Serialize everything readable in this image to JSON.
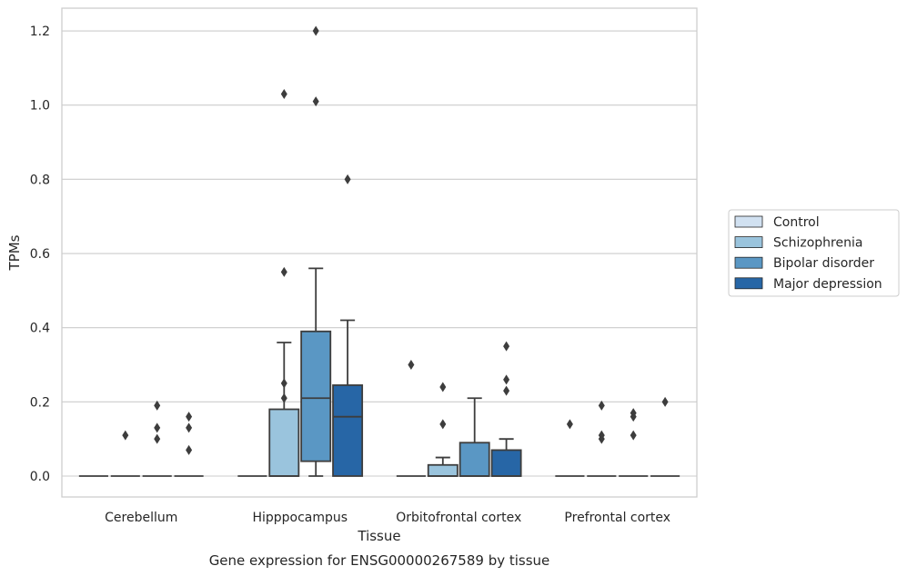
{
  "chart_data": {
    "type": "box",
    "title": "",
    "caption": "Gene expression for ENSG00000267589 by tissue",
    "xlabel": "Tissue",
    "ylabel": "TPMs",
    "ylim": [
      -0.06,
      1.26
    ],
    "yticks": [
      "0.0",
      "0.2",
      "0.4",
      "0.6",
      "0.8",
      "1.0",
      "1.2"
    ],
    "grid": "horizontal",
    "legend_position": "right",
    "categories": [
      "Cerebellum",
      "Hipppocampus",
      "Orbitofrontal cortex",
      "Prefrontal cortex"
    ],
    "series": [
      {
        "name": "Control",
        "color": "#d1e1f1",
        "boxes": [
          {
            "min": 0,
            "q1": 0,
            "median": 0,
            "q3": 0,
            "max": 0,
            "outliers": []
          },
          {
            "min": 0,
            "q1": 0,
            "median": 0,
            "q3": 0,
            "max": 0,
            "outliers": []
          },
          {
            "min": 0,
            "q1": 0,
            "median": 0,
            "q3": 0,
            "max": 0,
            "outliers": [
              0.3
            ]
          },
          {
            "min": 0,
            "q1": 0,
            "median": 0,
            "q3": 0,
            "max": 0,
            "outliers": [
              0.14
            ]
          }
        ]
      },
      {
        "name": "Schizophrenia",
        "color": "#9ac4dd",
        "boxes": [
          {
            "min": 0,
            "q1": 0,
            "median": 0,
            "q3": 0,
            "max": 0,
            "outliers": [
              0.11
            ]
          },
          {
            "min": 0,
            "q1": 0,
            "median": 0,
            "q3": 0.18,
            "max": 0.36,
            "outliers": [
              0.21,
              0.25,
              0.55,
              1.03
            ]
          },
          {
            "min": 0,
            "q1": 0,
            "median": 0,
            "q3": 0.03,
            "max": 0.05,
            "outliers": [
              0.14,
              0.24
            ]
          },
          {
            "min": 0,
            "q1": 0,
            "median": 0,
            "q3": 0,
            "max": 0,
            "outliers": [
              0.1,
              0.11,
              0.19
            ]
          }
        ]
      },
      {
        "name": "Bipolar disorder",
        "color": "#5a97c4",
        "boxes": [
          {
            "min": 0,
            "q1": 0,
            "median": 0,
            "q3": 0,
            "max": 0,
            "outliers": [
              0.1,
              0.13,
              0.19
            ]
          },
          {
            "min": 0,
            "q1": 0.04,
            "median": 0.21,
            "q3": 0.39,
            "max": 0.56,
            "outliers": [
              1.01,
              1.2
            ]
          },
          {
            "min": 0,
            "q1": 0,
            "median": 0,
            "q3": 0.09,
            "max": 0.21,
            "outliers": []
          },
          {
            "min": 0,
            "q1": 0,
            "median": 0,
            "q3": 0,
            "max": 0,
            "outliers": [
              0.11,
              0.16,
              0.17
            ]
          }
        ]
      },
      {
        "name": "Major depression",
        "color": "#2766a6",
        "boxes": [
          {
            "min": 0,
            "q1": 0,
            "median": 0,
            "q3": 0,
            "max": 0,
            "outliers": [
              0.07,
              0.13,
              0.16
            ]
          },
          {
            "min": 0,
            "q1": 0,
            "median": 0.16,
            "q3": 0.245,
            "max": 0.42,
            "outliers": [
              0.8
            ]
          },
          {
            "min": 0,
            "q1": 0,
            "median": 0,
            "q3": 0.07,
            "max": 0.1,
            "outliers": [
              0.23,
              0.26,
              0.35
            ]
          },
          {
            "min": 0,
            "q1": 0,
            "median": 0,
            "q3": 0,
            "max": 0,
            "outliers": [
              0.2
            ]
          }
        ]
      }
    ]
  }
}
